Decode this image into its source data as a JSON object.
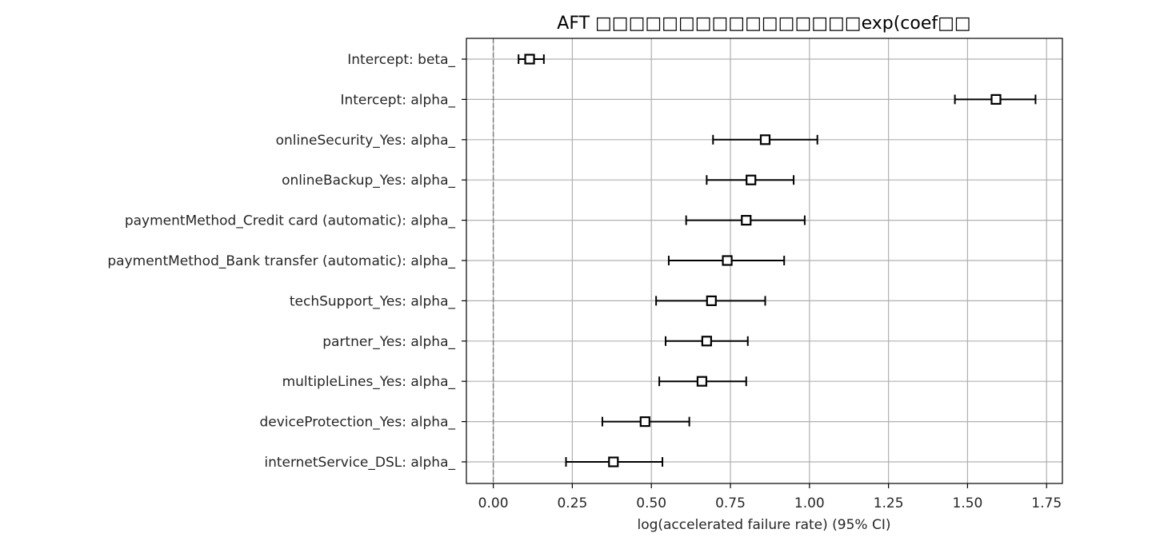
{
  "chart_data": {
    "type": "scatter",
    "title": "AFT □□□□□□□□□□□□□□□□exp(coef□□",
    "xlabel": "log(accelerated failure rate) (95% CI)",
    "ylabel": "",
    "xlim": [
      -0.085,
      1.8
    ],
    "xticks": [
      0.0,
      0.25,
      0.5,
      0.75,
      1.0,
      1.25,
      1.5,
      1.75
    ],
    "xtick_labels": [
      "0.00",
      "0.25",
      "0.50",
      "0.75",
      "1.00",
      "1.25",
      "1.50",
      "1.75"
    ],
    "grid": true,
    "reference_line_x": 0,
    "marker": "open-square",
    "errorbar_color": "#000000",
    "grid_color": "#b0b0b0",
    "reference_line_color": "#808080",
    "rows": [
      {
        "label": "Intercept: beta_",
        "coef": 0.115,
        "lower": 0.08,
        "upper": 0.16
      },
      {
        "label": "Intercept: alpha_",
        "coef": 1.59,
        "lower": 1.46,
        "upper": 1.715
      },
      {
        "label": "onlineSecurity_Yes: alpha_",
        "coef": 0.86,
        "lower": 0.695,
        "upper": 1.025
      },
      {
        "label": "onlineBackup_Yes: alpha_",
        "coef": 0.815,
        "lower": 0.675,
        "upper": 0.95
      },
      {
        "label": "paymentMethod_Credit card (automatic): alpha_",
        "coef": 0.8,
        "lower": 0.61,
        "upper": 0.985
      },
      {
        "label": "paymentMethod_Bank transfer (automatic): alpha_",
        "coef": 0.74,
        "lower": 0.555,
        "upper": 0.92
      },
      {
        "label": "techSupport_Yes: alpha_",
        "coef": 0.69,
        "lower": 0.515,
        "upper": 0.86
      },
      {
        "label": "partner_Yes: alpha_",
        "coef": 0.675,
        "lower": 0.545,
        "upper": 0.805
      },
      {
        "label": "multipleLines_Yes: alpha_",
        "coef": 0.66,
        "lower": 0.525,
        "upper": 0.8
      },
      {
        "label": "deviceProtection_Yes: alpha_",
        "coef": 0.48,
        "lower": 0.345,
        "upper": 0.62
      },
      {
        "label": "internetService_DSL: alpha_",
        "coef": 0.38,
        "lower": 0.23,
        "upper": 0.535
      }
    ]
  }
}
